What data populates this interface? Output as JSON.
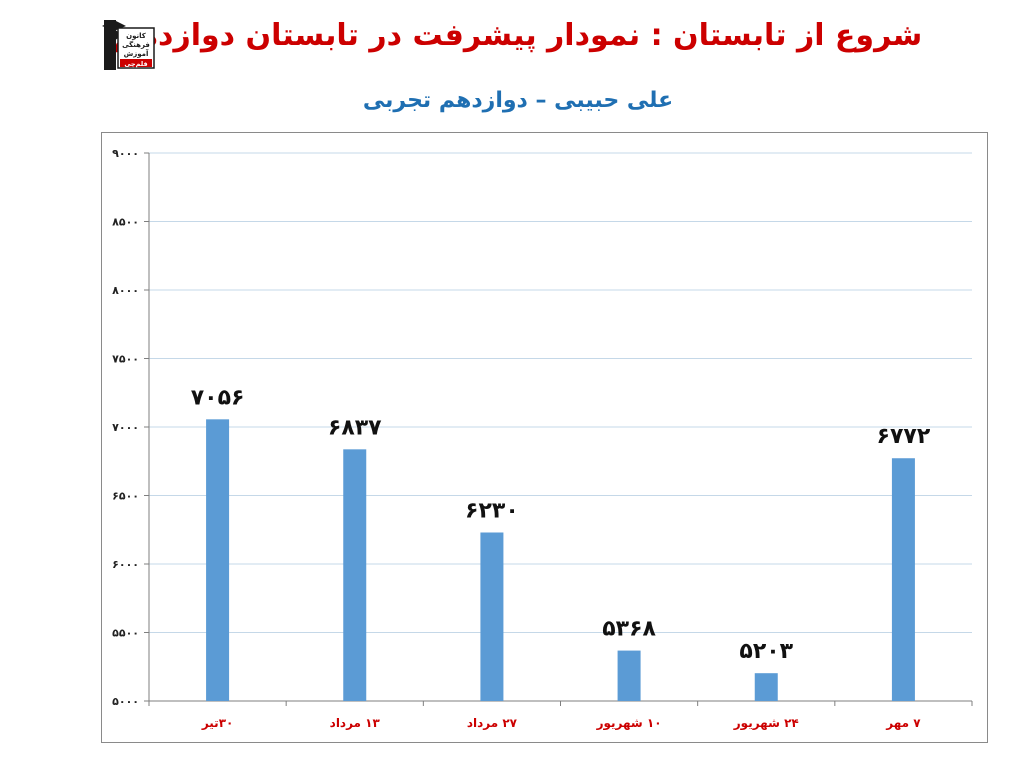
{
  "header": {
    "title": "شروع از تابستان : نمودار پیشرفت در تابستان دوازدهم",
    "subtitle": "علی حبیبی – دوازدهم تجربی",
    "title_color": "#cc0000",
    "subtitle_color": "#1f6fb2",
    "logo": {
      "icon": "graduate-logo-icon",
      "line1": "کانون",
      "line2": "فرهنگی",
      "line3": "آموزش",
      "line4": "قلم‌چی"
    }
  },
  "chart_data": {
    "type": "bar",
    "title": "",
    "xlabel": "",
    "ylabel": "",
    "categories": [
      "۳۰تیر",
      "۱۳ مرداد",
      "۲۷ مرداد",
      "۱۰ شهریور",
      "۲۴ شهریور",
      "۷ مهر"
    ],
    "values": [
      7056,
      6837,
      6230,
      5368,
      5203,
      6772
    ],
    "value_labels": [
      "۷۰۵۶",
      "۶۸۳۷",
      "۶۲۳۰",
      "۵۳۶۸",
      "۵۲۰۳",
      "۶۷۷۲"
    ],
    "ylim": [
      5000,
      9000
    ],
    "yticks": [
      5000,
      5500,
      6000,
      6500,
      7000,
      7500,
      8000,
      8500,
      9000
    ],
    "ytick_labels": [
      "۵۰۰۰",
      "۵۵۰۰",
      "۶۰۰۰",
      "۶۵۰۰",
      "۷۰۰۰",
      "۷۵۰۰",
      "۸۰۰۰",
      "۸۵۰۰",
      "۹۰۰۰"
    ],
    "grid": true,
    "legend": "none",
    "bar_color": "#5b9bd5",
    "gridline_color": "#c5d8e8",
    "category_label_color": "#cc0000"
  }
}
